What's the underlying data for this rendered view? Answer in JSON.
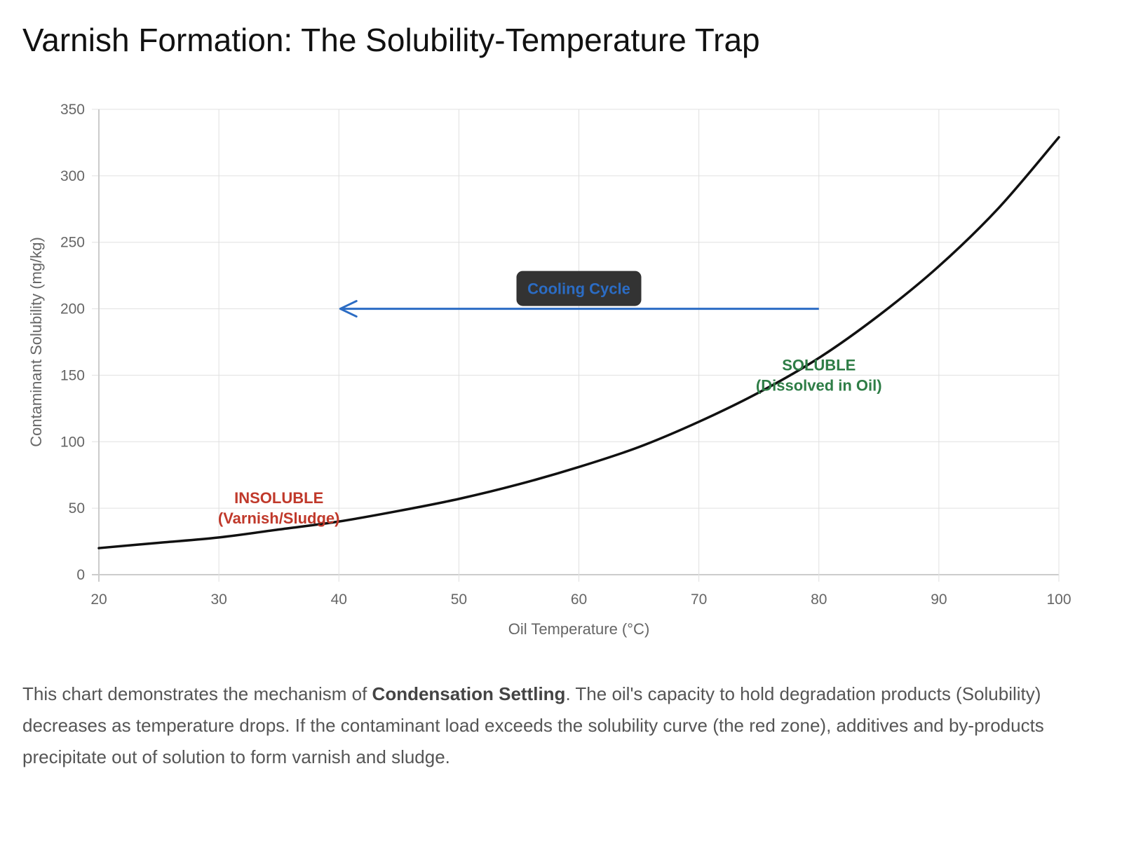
{
  "title": "Varnish Formation: The Solubility-Temperature Trap",
  "description": {
    "before": "This chart demonstrates the mechanism of ",
    "bold": "Condensation Settling",
    "after": ". The oil's capacity to hold degradation products (Solubility) decreases as temperature drops. If the contaminant load exceeds the solubility curve (the red zone), additives and by-products precipitate out of solution to form varnish and sludge."
  },
  "colors": {
    "curve": "#111111",
    "arrow": "#2b6cc4",
    "insoluble": "#c0392b",
    "soluble": "#2e7d46",
    "label_bg": "#333333",
    "grid": "#e0e0e0",
    "axis": "#cccccc"
  },
  "chart_data": {
    "type": "line",
    "title": "Varnish Formation: The Solubility-Temperature Trap",
    "xlabel": "Oil Temperature (°C)",
    "ylabel": "Contaminant Solubility (mg/kg)",
    "xlim": [
      20,
      100
    ],
    "ylim": [
      0,
      350
    ],
    "x_ticks": [
      "20",
      "30",
      "40",
      "50",
      "60",
      "70",
      "80",
      "90",
      "100"
    ],
    "y_ticks": [
      "0",
      "50",
      "100",
      "150",
      "200",
      "250",
      "300",
      "350"
    ],
    "grid": true,
    "legend": "none",
    "series": [
      {
        "name": "Solubility",
        "x": [
          20,
          25,
          30,
          35,
          40,
          45,
          50,
          55,
          60,
          65,
          70,
          75,
          80,
          85,
          90,
          95,
          100
        ],
        "y": [
          20,
          24,
          28,
          34,
          40,
          48,
          57,
          68,
          81,
          96,
          115,
          137,
          163,
          195,
          232,
          276,
          329
        ]
      }
    ],
    "annotations": [
      {
        "type": "arrow",
        "label": "Cooling Cycle",
        "from": [
          80,
          200
        ],
        "to": [
          40,
          200
        ]
      },
      {
        "type": "text",
        "lines": [
          "INSOLUBLE",
          "(Varnish/Sludge)"
        ],
        "x": 35,
        "y": 50,
        "color_key": "insoluble"
      },
      {
        "type": "text",
        "lines": [
          "SOLUBLE",
          "(Dissolved in Oil)"
        ],
        "x": 80,
        "y": 150,
        "color_key": "soluble"
      }
    ]
  }
}
